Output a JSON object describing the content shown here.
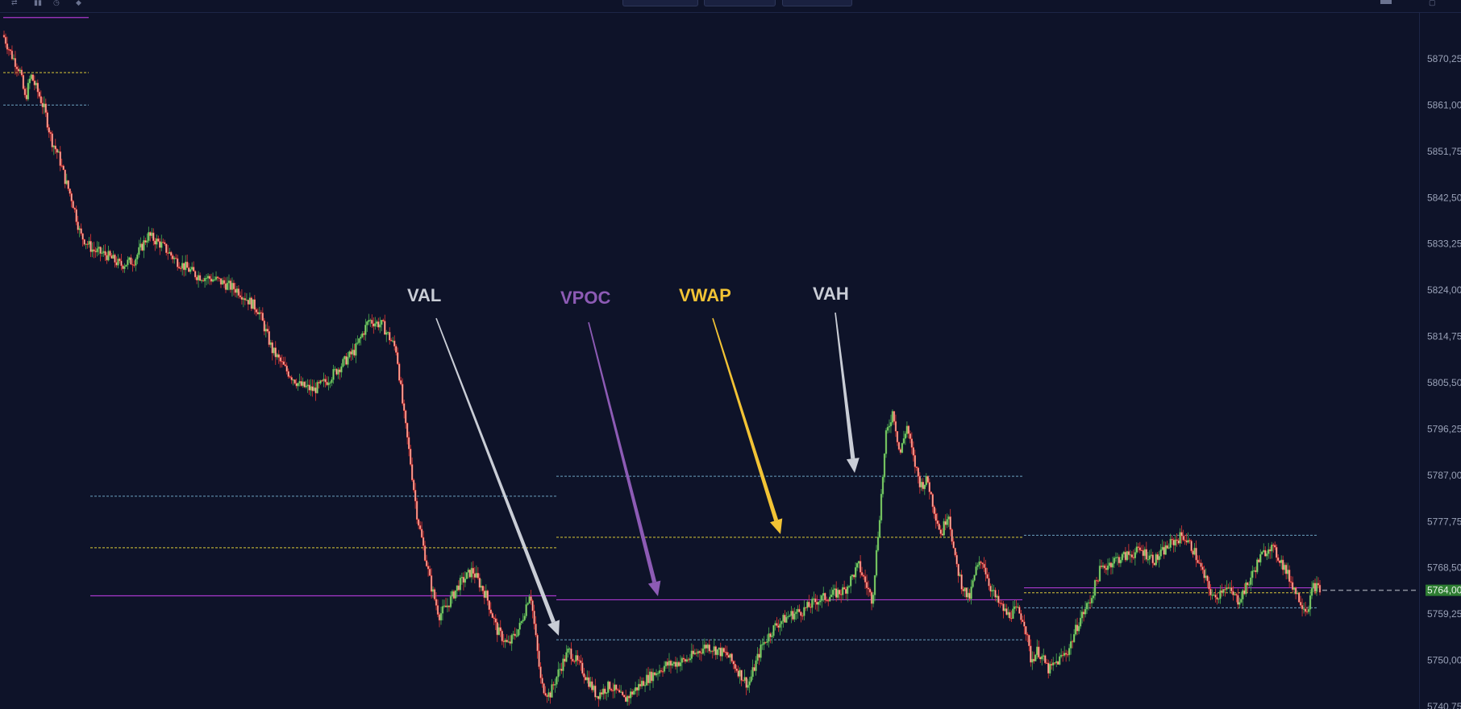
{
  "toolbar": {
    "left_icons": [
      "swap-icon",
      "bar-chart-icon",
      "timer-icon",
      "drop-icon"
    ],
    "right_icons": [
      "screenshot-icon",
      "maximize-icon"
    ]
  },
  "chart_data": {
    "type": "candlestick",
    "title": "",
    "y_axis": {
      "side": "right",
      "ticks": [
        "5870,25",
        "5861,00",
        "5851,75",
        "5842,50",
        "5833,25",
        "5824,00",
        "5814,75",
        "5805,50",
        "5796,25",
        "5787,00",
        "5777,75",
        "5768,50",
        "5759,25",
        "5750,00",
        "5740,75"
      ],
      "range": [
        5738.5,
        5878.5
      ]
    },
    "last_price": {
      "label": "5764,00",
      "value": 5764.0,
      "color": "#2e7d32"
    },
    "colors": {
      "up": "#4caf50",
      "down": "#e53935",
      "vah_val": "#6fa8c8",
      "vwap": "#e3d23a",
      "vpoc": "#b23ad6",
      "background": "#0e1329"
    },
    "sessions": [
      {
        "vah": 5861.0,
        "vwap": 5867.5,
        "vpoc": 5878.5
      },
      {
        "vah": 5782.8,
        "vwap": 5772.5,
        "vpoc": 5762.9
      },
      {
        "vah": 5786.8,
        "vwap": 5774.6,
        "vpoc": 5762.1,
        "val": 5754.1
      },
      {
        "vah": 5775.0,
        "vwap": 5763.5,
        "vpoc": 5764.5,
        "val": 5760.5
      }
    ],
    "price_path": [
      [
        0,
        5875
      ],
      [
        0.6,
        5871
      ],
      [
        1.2,
        5868
      ],
      [
        1.6,
        5862
      ],
      [
        2.0,
        5867
      ],
      [
        2.6,
        5863
      ],
      [
        3.0,
        5860
      ],
      [
        3.5,
        5854
      ],
      [
        4.0,
        5851
      ],
      [
        4.5,
        5846
      ],
      [
        5.0,
        5842
      ],
      [
        5.6,
        5835
      ],
      [
        6.5,
        5832
      ],
      [
        7.5,
        5831
      ],
      [
        8.5,
        5829
      ],
      [
        9.5,
        5830
      ],
      [
        10.5,
        5835
      ],
      [
        11.5,
        5833
      ],
      [
        12.5,
        5830
      ],
      [
        14,
        5827
      ],
      [
        15.5,
        5826
      ],
      [
        17,
        5824
      ],
      [
        18.5,
        5820
      ],
      [
        19.5,
        5812
      ],
      [
        20.5,
        5808
      ],
      [
        21.5,
        5805
      ],
      [
        22.5,
        5804
      ],
      [
        23.5,
        5806
      ],
      [
        24.5,
        5809
      ],
      [
        25.5,
        5812
      ],
      [
        26.5,
        5818
      ],
      [
        27.5,
        5817
      ],
      [
        28.5,
        5812
      ],
      [
        29,
        5800
      ],
      [
        29.5,
        5790
      ],
      [
        30,
        5779
      ],
      [
        30.5,
        5772
      ],
      [
        31,
        5765
      ],
      [
        31.6,
        5759
      ],
      [
        32.2,
        5761
      ],
      [
        33,
        5765
      ],
      [
        34,
        5768
      ],
      [
        35,
        5763
      ],
      [
        35.8,
        5756
      ],
      [
        36.6,
        5753
      ],
      [
        37.5,
        5757
      ],
      [
        38.2,
        5764
      ],
      [
        39,
        5745
      ],
      [
        39.6,
        5743
      ],
      [
        40.3,
        5748
      ],
      [
        41,
        5752
      ],
      [
        42,
        5748
      ],
      [
        43,
        5743
      ],
      [
        44,
        5745
      ],
      [
        45,
        5742
      ],
      [
        46.5,
        5746
      ],
      [
        48,
        5749
      ],
      [
        49.5,
        5750
      ],
      [
        51,
        5753
      ],
      [
        52.5,
        5751
      ],
      [
        54,
        5745
      ],
      [
        55,
        5753
      ],
      [
        56,
        5757
      ],
      [
        57,
        5759
      ],
      [
        58,
        5760
      ],
      [
        59,
        5762
      ],
      [
        60,
        5763
      ],
      [
        61,
        5764
      ],
      [
        62,
        5769
      ],
      [
        63,
        5762
      ],
      [
        63.5,
        5778
      ],
      [
        64,
        5795
      ],
      [
        64.5,
        5800
      ],
      [
        65,
        5791
      ],
      [
        65.5,
        5797
      ],
      [
        66,
        5790
      ],
      [
        66.5,
        5785
      ],
      [
        67,
        5786
      ],
      [
        67.5,
        5780
      ],
      [
        68,
        5775
      ],
      [
        68.5,
        5780
      ],
      [
        69,
        5770
      ],
      [
        69.5,
        5765
      ],
      [
        70,
        5762
      ],
      [
        70.5,
        5768
      ],
      [
        71,
        5770
      ],
      [
        71.5,
        5765
      ],
      [
        72,
        5762
      ],
      [
        72.8,
        5759
      ],
      [
        73.5,
        5760
      ],
      [
        74,
        5758
      ],
      [
        74.5,
        5750
      ],
      [
        75,
        5752
      ],
      [
        75.8,
        5748
      ],
      [
        76.5,
        5750
      ],
      [
        77.2,
        5752
      ],
      [
        78,
        5758
      ],
      [
        78.8,
        5762
      ],
      [
        79.5,
        5768
      ],
      [
        80.5,
        5770
      ],
      [
        81.5,
        5771
      ],
      [
        82.5,
        5772
      ],
      [
        83.5,
        5770
      ],
      [
        84.5,
        5773
      ],
      [
        85.5,
        5775
      ],
      [
        86.3,
        5772
      ],
      [
        87,
        5767
      ],
      [
        87.8,
        5762
      ],
      [
        88.5,
        5765
      ],
      [
        89.5,
        5762
      ],
      [
        90.2,
        5765
      ],
      [
        91,
        5770
      ],
      [
        91.8,
        5773
      ],
      [
        92.6,
        5770
      ],
      [
        93.3,
        5766
      ],
      [
        94,
        5762
      ],
      [
        94.5,
        5760
      ],
      [
        95,
        5765
      ],
      [
        95.5,
        5764
      ]
    ],
    "annotations": [
      {
        "label": "VAL",
        "color": "#c9cdd6",
        "points_to": "value area low"
      },
      {
        "label": "VPOC",
        "color": "#8d5bb5",
        "points_to": "volume point of control"
      },
      {
        "label": "VWAP",
        "color": "#f2c335",
        "points_to": "volume weighted average price"
      },
      {
        "label": "VAH",
        "color": "#c9cdd6",
        "points_to": "value area high"
      }
    ]
  }
}
